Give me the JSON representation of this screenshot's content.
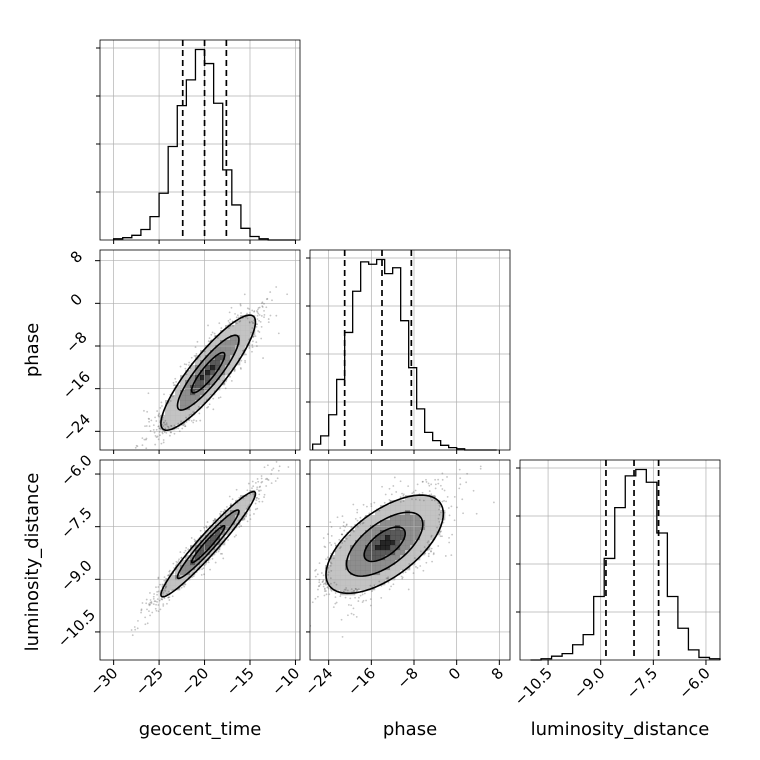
{
  "chart_data": {
    "type": "corner",
    "parameters": [
      "geocent_time",
      "phase",
      "luminosity_distance"
    ],
    "axis_labels": {
      "geocent_time": "geocent_time",
      "phase": "phase",
      "luminosity_distance": "luminosity_distance"
    },
    "ranges": {
      "geocent_time": [
        -31.5,
        -9.5
      ],
      "phase": [
        -27.5,
        10.0
      ],
      "luminosity_distance": [
        -11.3,
        -5.6
      ]
    },
    "ticks": {
      "geocent_time": [
        -30,
        -25,
        -20,
        -15,
        -10
      ],
      "phase": [
        -24,
        -16,
        -8,
        0,
        8
      ],
      "luminosity_distance": [
        -10.5,
        -9.0,
        -7.5,
        -6.0
      ]
    },
    "tick_labels": {
      "geocent_time": [
        "−30",
        "−25",
        "−20",
        "−15",
        "−10"
      ],
      "phase": [
        "−24",
        "−16",
        "−8",
        "0",
        "8"
      ],
      "luminosity_distance": [
        "−10.5",
        "−9.0",
        "−7.5",
        "−6.0"
      ]
    },
    "quantiles": {
      "geocent_time": [
        -22.4,
        -20.0,
        -17.6
      ],
      "phase": [
        -21.0,
        -14.0,
        -8.5
      ],
      "luminosity_distance": [
        -8.85,
        -8.05,
        -7.35
      ]
    },
    "histograms": {
      "geocent_time": {
        "edges": [
          -30.0,
          -29.0,
          -28.0,
          -27.0,
          -26.0,
          -25.0,
          -24.0,
          -23.0,
          -22.0,
          -21.0,
          -20.0,
          -19.0,
          -18.0,
          -17.0,
          -16.0,
          -15.0,
          -14.0,
          -13.0,
          -12.0,
          -11.0,
          -10.0
        ],
        "counts": [
          1,
          2,
          4,
          9,
          20,
          40,
          80,
          115,
          137,
          163,
          151,
          117,
          60,
          30,
          10,
          3,
          1,
          0,
          0,
          0
        ]
      },
      "phase": {
        "edges": [
          -27.0,
          -25.5,
          -24.0,
          -22.5,
          -21.0,
          -19.5,
          -18.0,
          -16.5,
          -15.0,
          -13.5,
          -12.0,
          -10.5,
          -9.0,
          -7.5,
          -6.0,
          -4.5,
          -3.0,
          -1.5,
          0.0,
          1.5,
          3.0,
          4.5,
          6.0,
          7.5
        ],
        "counts": [
          5,
          12,
          30,
          60,
          100,
          135,
          160,
          158,
          162,
          150,
          155,
          110,
          70,
          35,
          15,
          8,
          4,
          2,
          1,
          0,
          0,
          0,
          0
        ]
      },
      "luminosity_distance": {
        "edges": [
          -11.0,
          -10.7,
          -10.4,
          -10.1,
          -9.8,
          -9.5,
          -9.2,
          -8.9,
          -8.6,
          -8.3,
          -8.0,
          -7.7,
          -7.4,
          -7.1,
          -6.8,
          -6.5,
          -6.2,
          -5.9,
          -5.6
        ],
        "counts": [
          0,
          1,
          3,
          5,
          12,
          20,
          50,
          80,
          120,
          145,
          150,
          140,
          100,
          50,
          25,
          8,
          2,
          1
        ]
      }
    },
    "pairs": [
      {
        "x": "geocent_time",
        "y": "phase",
        "mean": [
          -19.6,
          -13.0
        ],
        "sd": [
          2.6,
          5.4
        ],
        "rho": 0.88,
        "contour_levels": [
          0.7,
          1.3,
          2.0
        ],
        "cloud_points": 1500
      },
      {
        "x": "geocent_time",
        "y": "luminosity_distance",
        "mean": [
          -19.6,
          -8.0
        ],
        "sd": [
          2.6,
          0.75
        ],
        "rho": 0.96,
        "contour_levels": [
          0.7,
          1.3,
          2.0
        ],
        "cloud_points": 1500
      },
      {
        "x": "phase",
        "y": "luminosity_distance",
        "mean": [
          -13.5,
          -8.0
        ],
        "sd": [
          5.5,
          0.7
        ],
        "rho": 0.62,
        "contour_levels": [
          0.7,
          1.3,
          2.0
        ],
        "cloud_points": 1500
      }
    ],
    "grid": true,
    "colors": {
      "line": "#000000",
      "grid": "#b0b0b0",
      "points": "#5a5a5a",
      "density": [
        "#b8b8b8",
        "#7a7a7a",
        "#3d3d3d",
        "#000000"
      ]
    }
  }
}
